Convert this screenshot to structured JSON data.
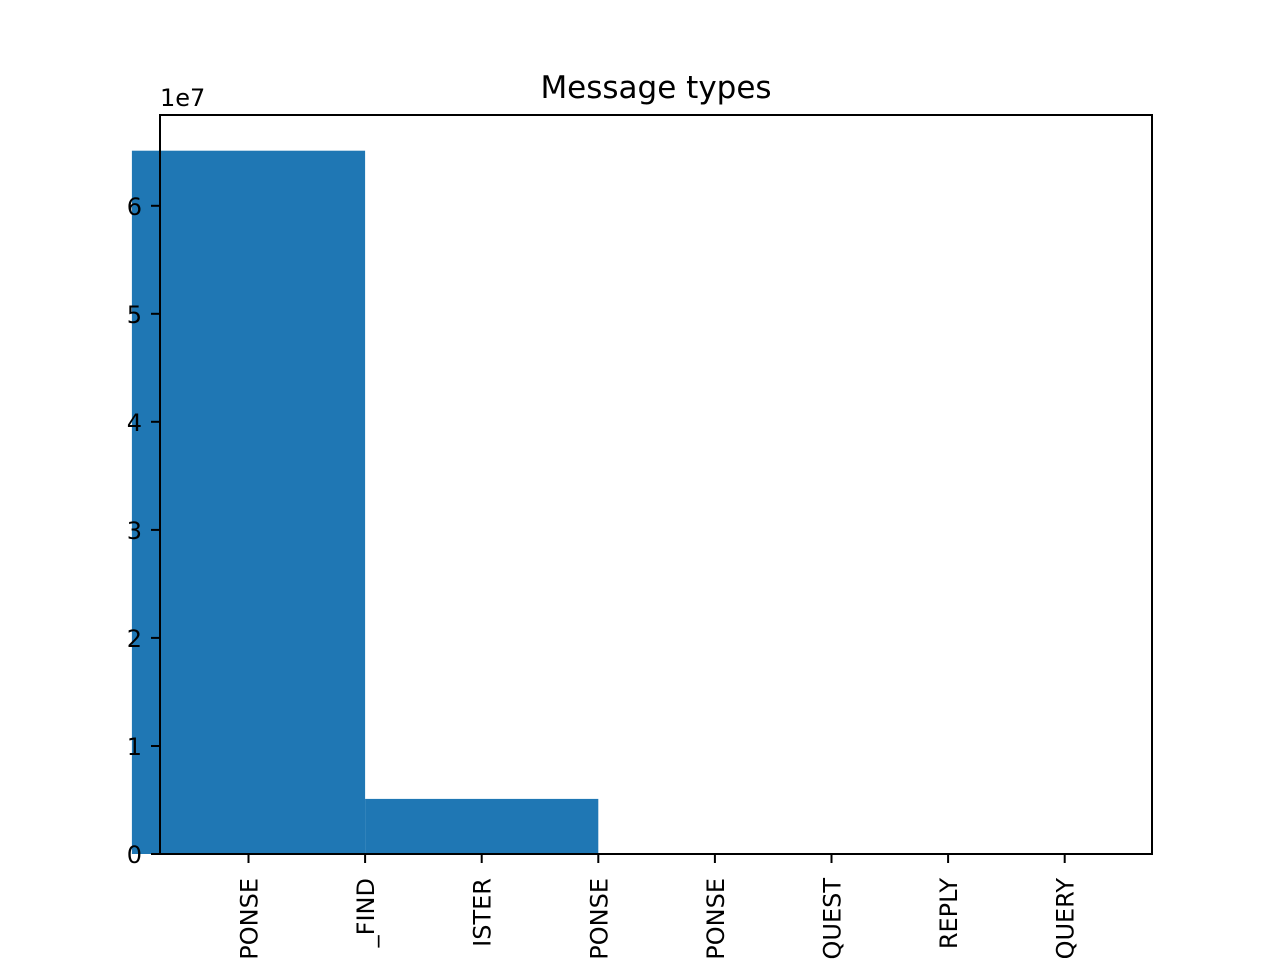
{
  "chart_data": {
    "type": "bar",
    "title": "Message types",
    "categories": [
      "PONSE",
      "_FIND",
      "ISTER",
      "PONSE",
      "PONSE",
      "QUEST",
      "REPLY",
      "QUERY"
    ],
    "values": [
      65100000,
      0,
      5100000,
      0,
      0,
      0,
      0,
      0
    ],
    "y_offset_label": "1e7",
    "y_ticks": [
      0,
      1,
      2,
      3,
      4,
      5,
      6
    ],
    "y_tick_multiplier": 10000000,
    "ylim": [
      0,
      68400000
    ],
    "xlabel": "",
    "ylabel": "",
    "grid": false,
    "bar_color": "#1f77b4"
  }
}
